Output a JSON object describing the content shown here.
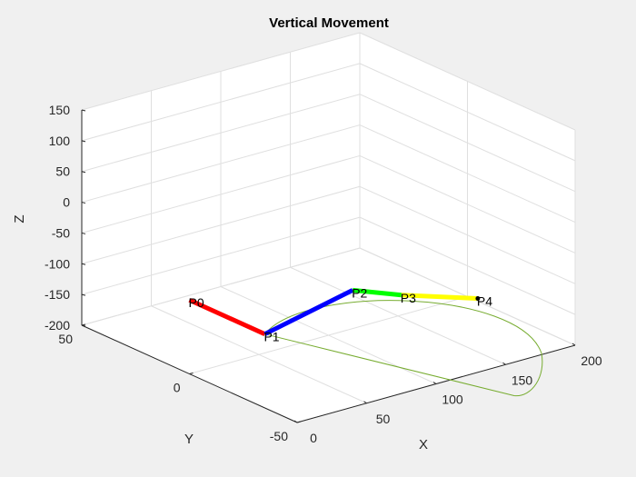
{
  "chart_data": {
    "type": "line",
    "projection": "3d",
    "title": "Vertical Movement",
    "xlabel": "X",
    "ylabel": "Y",
    "zlabel": "Z",
    "xlim": [
      0,
      200
    ],
    "ylim": [
      -50,
      50
    ],
    "zlim": [
      -200,
      150
    ],
    "xticks": [
      "0",
      "50",
      "100",
      "150",
      "200"
    ],
    "yticks": [
      "-50",
      "0",
      "50"
    ],
    "zticks": [
      "150",
      "100",
      "50",
      "0",
      "-50",
      "-100",
      "-150",
      "-200"
    ],
    "grid": true,
    "links": [
      {
        "from": "P0",
        "to": "P1",
        "color": "#ff0000"
      },
      {
        "from": "P1",
        "to": "P2",
        "color": "#0000ff"
      },
      {
        "from": "P2",
        "to": "P3",
        "color": "#00ff00"
      },
      {
        "from": "P3",
        "to": "P4",
        "color": "#ffff00"
      }
    ],
    "points": [
      {
        "label": "P0",
        "x": 0,
        "y": 0,
        "z": -80
      },
      {
        "label": "P1",
        "x": 0,
        "y": -35,
        "z": -80
      },
      {
        "label": "P2",
        "x": 40,
        "y": -50,
        "z": -10
      },
      {
        "label": "P3",
        "x": 75,
        "y": -50,
        "z": -40
      },
      {
        "label": "P4",
        "x": 130,
        "y": -50,
        "z": -80
      }
    ],
    "trajectory_color": "#77ac30"
  }
}
